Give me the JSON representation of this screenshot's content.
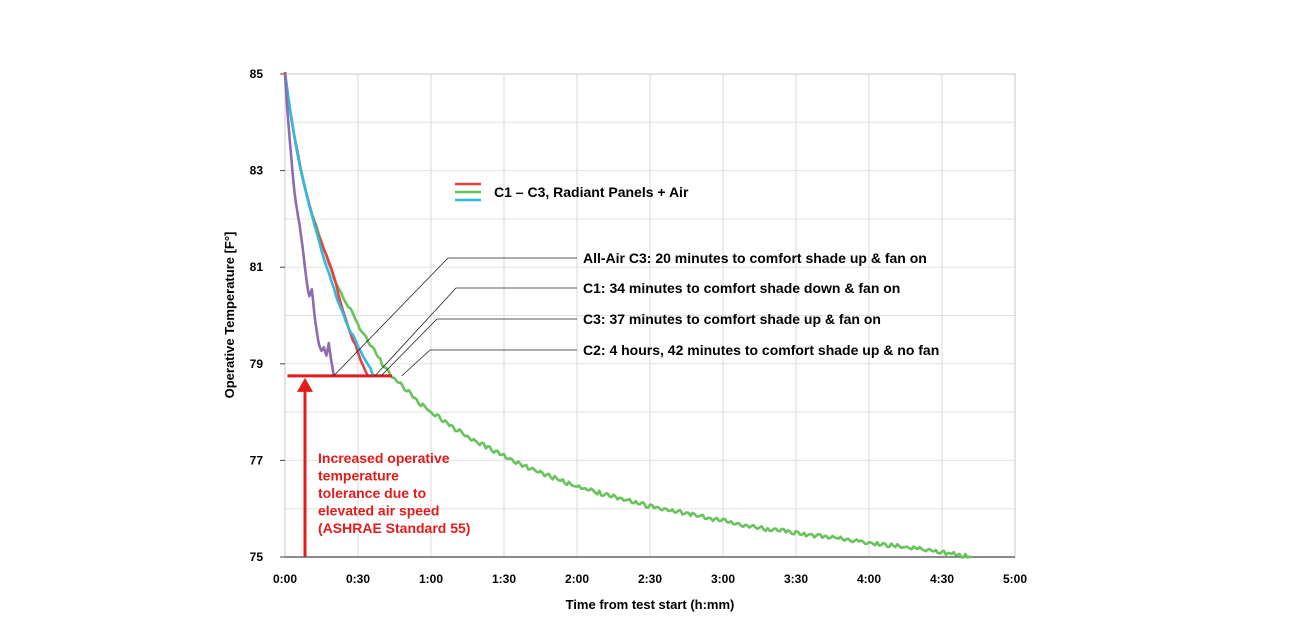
{
  "chart_data": {
    "type": "line",
    "xlabel": "Time from test start (h:mm)",
    "ylabel": "Operative Temperature [F°]",
    "xlim": [
      0,
      300
    ],
    "ylim": [
      75,
      85
    ],
    "x_ticks": [
      0,
      30,
      60,
      90,
      120,
      150,
      180,
      210,
      240,
      270,
      300
    ],
    "x_tick_labels": [
      "0:00",
      "0:30",
      "1:00",
      "1:30",
      "2:00",
      "2:30",
      "3:00",
      "3:30",
      "4:00",
      "4:30",
      "5:00"
    ],
    "y_ticks": [
      75,
      77,
      79,
      81,
      83,
      85
    ],
    "y_tick_labels": [
      "75",
      "77",
      "79",
      "81",
      "83",
      "85"
    ],
    "grid": true,
    "comfort_threshold": 78.75,
    "comfort_threshold_x_end": 44,
    "series": [
      {
        "color": "#8b6bb1",
        "x": [
          0,
          1,
          2,
          3,
          4,
          5,
          6,
          7,
          8,
          9,
          10,
          11,
          12,
          13,
          14,
          15,
          16,
          17,
          18,
          19,
          20
        ],
        "y": [
          85,
          84.2,
          83.6,
          83.0,
          82.5,
          82.15,
          81.85,
          81.5,
          81.1,
          80.7,
          80.4,
          80.55,
          80.1,
          79.7,
          79.4,
          79.25,
          79.3,
          79.15,
          79.4,
          79.05,
          78.75
        ]
      },
      {
        "color": "#e84040",
        "x": [
          0,
          2,
          4,
          6,
          8,
          10,
          12,
          14,
          16,
          18,
          20,
          22,
          24,
          26,
          28,
          30,
          32,
          34
        ],
        "y": [
          85,
          84.25,
          83.65,
          83.15,
          82.7,
          82.3,
          81.95,
          81.6,
          81.35,
          81.1,
          80.8,
          80.45,
          80.1,
          79.8,
          79.5,
          79.2,
          78.95,
          78.75
        ]
      },
      {
        "color": "#33b8e0",
        "x": [
          0,
          2,
          4,
          6,
          8,
          10,
          12,
          14,
          16,
          18,
          20,
          22,
          24,
          26,
          28,
          30,
          32,
          34,
          36,
          37
        ],
        "y": [
          85,
          84.25,
          83.65,
          83.15,
          82.7,
          82.3,
          81.9,
          81.5,
          81.15,
          80.85,
          80.55,
          80.3,
          80.05,
          79.8,
          79.55,
          79.35,
          79.15,
          78.95,
          78.8,
          78.75
        ]
      },
      {
        "color": "#66c45a",
        "x": [
          0,
          2,
          4,
          6,
          8,
          10,
          12,
          14,
          16,
          18,
          20,
          22,
          24,
          26,
          28,
          30,
          35,
          40,
          45,
          50,
          55,
          60,
          70,
          80,
          90,
          100,
          110,
          120,
          135,
          150,
          165,
          180,
          195,
          210,
          225,
          240,
          255,
          270,
          282
        ],
        "y": [
          85,
          84.25,
          83.65,
          83.15,
          82.7,
          82.3,
          81.95,
          81.65,
          81.35,
          81.05,
          80.8,
          80.6,
          80.4,
          80.2,
          80.0,
          79.8,
          79.4,
          79.0,
          78.7,
          78.45,
          78.2,
          78.0,
          77.65,
          77.35,
          77.1,
          76.85,
          76.65,
          76.45,
          76.25,
          76.05,
          75.9,
          75.75,
          75.6,
          75.5,
          75.4,
          75.3,
          75.2,
          75.1,
          75.0
        ]
      }
    ],
    "legend": {
      "label": "C1 – C3, Radiant Panels + Air",
      "colors": [
        "#e84040",
        "#66c45a",
        "#33b8e0"
      ]
    },
    "annotations": [
      {
        "text": "All-Air C3: 20 minutes to comfort shade up & fan on",
        "x": 20,
        "y": 78.75
      },
      {
        "text": "C1: 34 minutes to comfort shade down & fan on",
        "x": 37,
        "y": 78.75
      },
      {
        "text": "C3: 37 minutes to comfort shade up & fan on",
        "x": 39.5,
        "y": 78.75
      },
      {
        "text": "C2: 4 hours, 42 minutes to comfort shade up & no fan",
        "x": 48,
        "y": 78.75
      }
    ],
    "note_lines": [
      "Increased operative",
      "temperature",
      "tolerance due to",
      "elevated air speed",
      "(ASHRAE Standard 55)"
    ]
  }
}
